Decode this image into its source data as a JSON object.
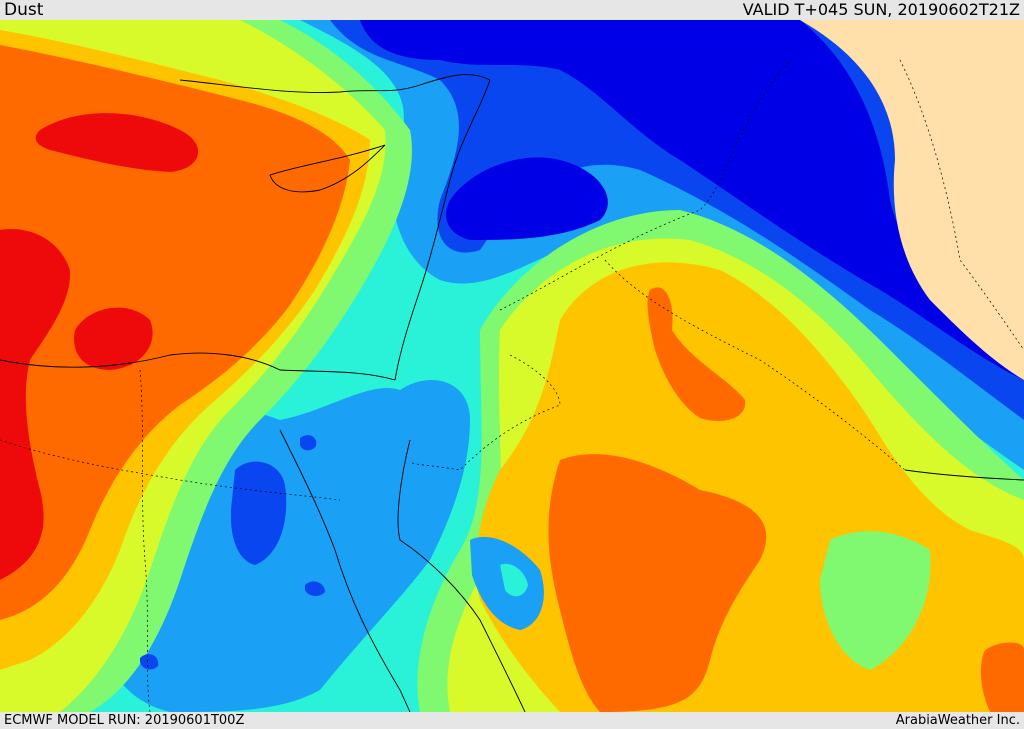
{
  "header": {
    "title": "Dust",
    "valid": "VALID T+045 SUN, 20190602T21Z"
  },
  "footer": {
    "model_run": "ECMWF MODEL RUN: 20190601T00Z",
    "credit": "ArabiaWeather Inc."
  },
  "palette": {
    "low_1": "#0000e6",
    "low_2": "#0a46f0",
    "low_3": "#1aa0f5",
    "mid_1": "#2af2d8",
    "mid_2": "#80f870",
    "mid_3": "#d8fa2a",
    "high_1": "#ffc400",
    "high_2": "#ff6a00",
    "high_3": "#ee0a0a",
    "no_data": "#ffdfaa"
  }
}
